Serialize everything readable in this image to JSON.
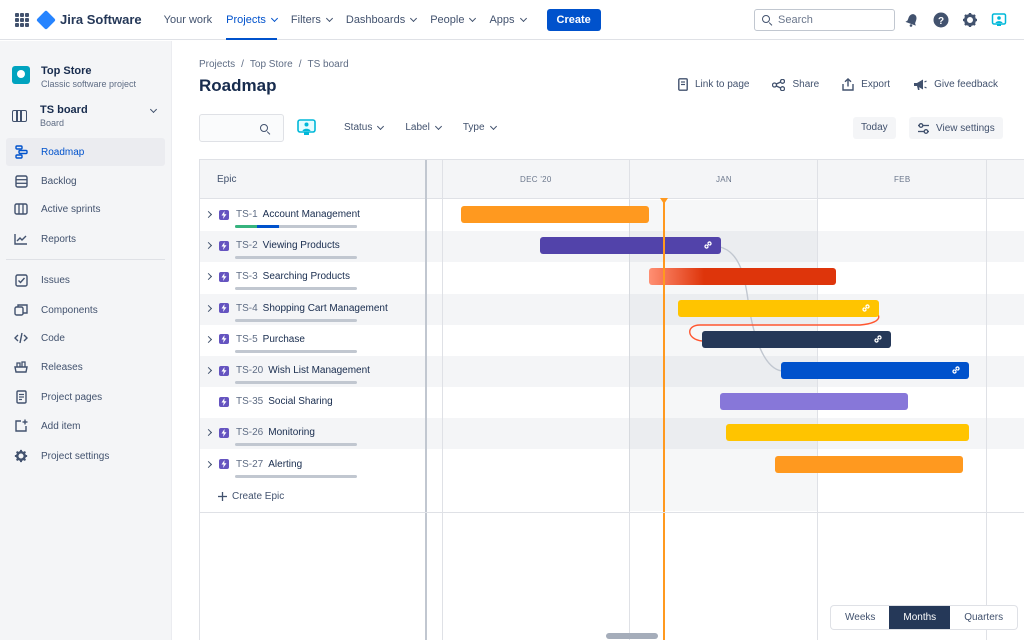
{
  "app": {
    "name": "Jira Software"
  },
  "nav": {
    "items": [
      {
        "label": "Your work",
        "caret": false,
        "active": false
      },
      {
        "label": "Projects",
        "caret": true,
        "active": true
      },
      {
        "label": "Filters",
        "caret": true,
        "active": false
      },
      {
        "label": "Dashboards",
        "caret": true,
        "active": false
      },
      {
        "label": "People",
        "caret": true,
        "active": false
      },
      {
        "label": "Apps",
        "caret": true,
        "active": false
      }
    ],
    "create_label": "Create",
    "search_placeholder": "Search"
  },
  "sidebar": {
    "project_name": "Top Store",
    "project_type": "Classic software project",
    "board_name": "TS board",
    "board_type": "Board",
    "items": [
      {
        "label": "Roadmap",
        "icon": "roadmap-icon",
        "active": true
      },
      {
        "label": "Backlog",
        "icon": "backlog-icon"
      },
      {
        "label": "Active sprints",
        "icon": "sprints-icon"
      },
      {
        "label": "Reports",
        "icon": "reports-icon"
      },
      {
        "label": "Issues",
        "icon": "issues-icon"
      },
      {
        "label": "Components",
        "icon": "components-icon"
      },
      {
        "label": "Code",
        "icon": "code-icon"
      },
      {
        "label": "Releases",
        "icon": "releases-icon"
      },
      {
        "label": "Project pages",
        "icon": "pages-icon"
      },
      {
        "label": "Add item",
        "icon": "add-item-icon"
      },
      {
        "label": "Project settings",
        "icon": "settings-icon"
      }
    ]
  },
  "breadcrumb": [
    "Projects",
    "Top Store",
    "TS board"
  ],
  "page": {
    "title": "Roadmap"
  },
  "actions": {
    "link": "Link to page",
    "share": "Share",
    "export": "Export",
    "feedback": "Give feedback"
  },
  "filters": [
    "Status",
    "Label",
    "Type"
  ],
  "toolbar": {
    "today": "Today",
    "view_settings": "View settings"
  },
  "roadmap": {
    "epic_header": "Epic",
    "months": [
      "DEC '20",
      "JAN",
      "FEB"
    ],
    "create_epic": "Create Epic",
    "epics": [
      {
        "key": "TS-1",
        "name": "Account Management",
        "expandable": true,
        "progress": [
          0.18,
          0.18,
          0.64
        ],
        "bar_color": "#FF991F",
        "linked": false
      },
      {
        "key": "TS-2",
        "name": "Viewing Products",
        "expandable": true,
        "progress": [
          0,
          0,
          1
        ],
        "bar_color": "#5243AA",
        "linked": true
      },
      {
        "key": "TS-3",
        "name": "Searching Products",
        "expandable": true,
        "progress": [
          0,
          0,
          1
        ],
        "bar_color": "#DE350B",
        "linked": false
      },
      {
        "key": "TS-4",
        "name": "Shopping Cart Management",
        "expandable": true,
        "progress": [
          0,
          0,
          1
        ],
        "bar_color": "#FFC400",
        "linked": true
      },
      {
        "key": "TS-5",
        "name": "Purchase",
        "expandable": true,
        "progress": [
          0,
          0,
          1
        ],
        "bar_color": "#253858",
        "linked": true
      },
      {
        "key": "TS-20",
        "name": "Wish List Management",
        "expandable": true,
        "progress": [
          0,
          0,
          1
        ],
        "bar_color": "#0052CC",
        "linked": true
      },
      {
        "key": "TS-35",
        "name": "Social Sharing",
        "expandable": false,
        "progress": null,
        "bar_color": "#8777D9",
        "linked": false
      },
      {
        "key": "TS-26",
        "name": "Monitoring",
        "expandable": true,
        "progress": [
          0,
          0,
          1
        ],
        "bar_color": "#FFC400",
        "linked": false
      },
      {
        "key": "TS-27",
        "name": "Alerting",
        "expandable": true,
        "progress": [
          0,
          0,
          1
        ],
        "bar_color": "#FF991F",
        "linked": false
      }
    ]
  },
  "zoom": {
    "options": [
      "Weeks",
      "Months",
      "Quarters"
    ],
    "selected": "Months"
  }
}
